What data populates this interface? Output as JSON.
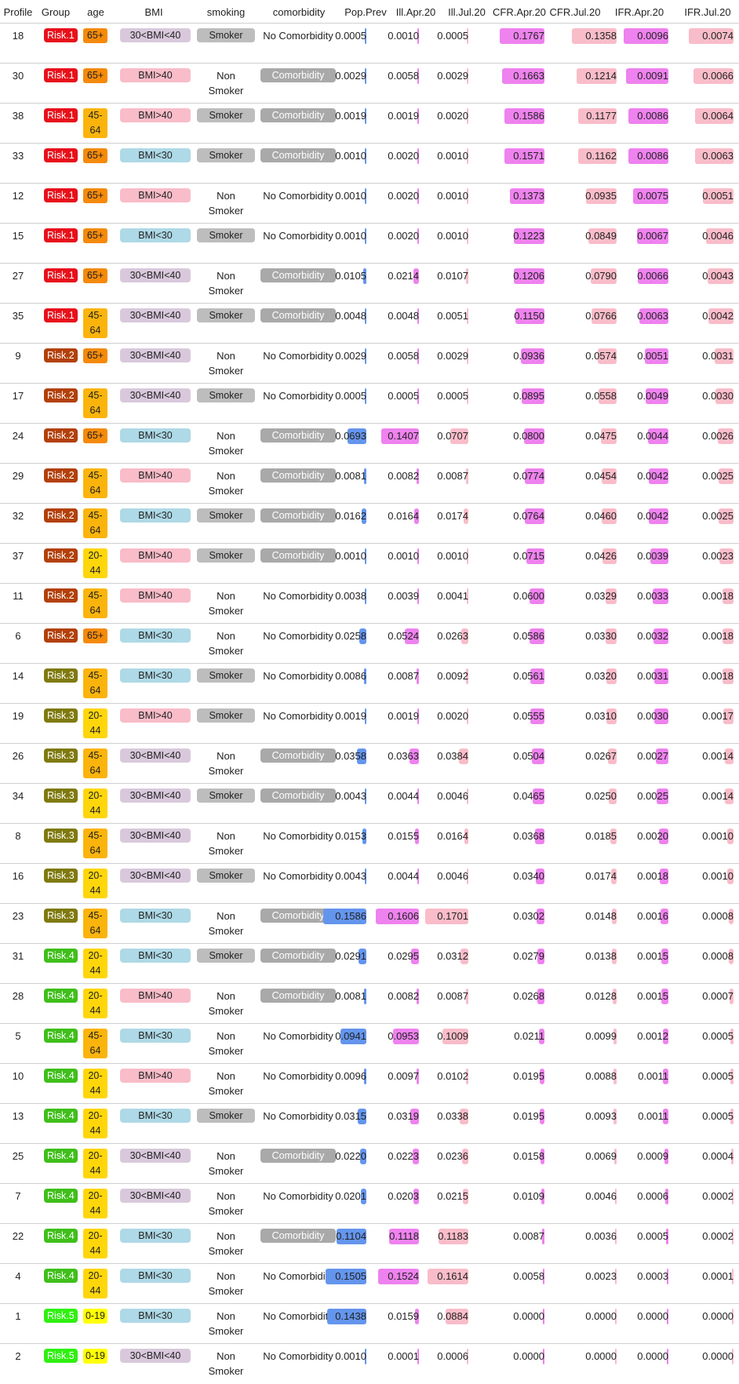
{
  "columns": [
    "Profile",
    "Group",
    "age",
    "BMI",
    "smoking",
    "comorbidity",
    "Pop.Prev",
    "Ill.Apr.20",
    "Ill.Jul.20",
    "CFR.Apr.20",
    "CFR.Jul.20",
    "IFR.Apr.20",
    "IFR.Jul.20"
  ],
  "colors": {
    "Risk.1": "#e8101b",
    "Risk.2": "#b3400a",
    "Risk.3": "#7f7a0e",
    "Risk.4": "#3fbf1a",
    "Risk.5": "#2ff00f",
    "age_65+": "#f58a0a",
    "age_45-64": "#fbb40c",
    "age_20-44": "#ffd60a",
    "age_0-19": "#ffff00",
    "BMI>40": "#f9bcc9",
    "BMI<30": "#aed9e6",
    "30<BMI<40": "#d9c8dc",
    "Smoker": "#bdbdbd",
    "Comorbidity": "#a9a9a9",
    "pop_bar": "#6495ed",
    "ill_apr_bar": "#ee82ee",
    "ill_jul_bar": "#f9bcc9",
    "cfr_apr_bar": "#ee82ee",
    "cfr_jul_bar": "#f9bcc9",
    "ifr_apr_bar": "#ee82ee",
    "ifr_jul_bar": "#f9bcc9"
  },
  "rows": [
    {
      "profile": "18",
      "group": "Risk.1",
      "age": "65+",
      "bmi": "30<BMI<40",
      "smoking": "Smoker",
      "comorbidity": "No Comorbidity",
      "pop": "0.0005",
      "ill_apr": "0.0010",
      "ill_jul": "0.0005",
      "cfr_apr": "0.1767",
      "cfr_jul": "0.1358",
      "ifr_apr": "0.0096",
      "ifr_jul": "0.0074"
    },
    {
      "profile": "30",
      "group": "Risk.1",
      "age": "65+",
      "bmi": "BMI>40",
      "smoking": "Non Smoker",
      "comorbidity": "Comorbidity",
      "pop": "0.0029",
      "ill_apr": "0.0058",
      "ill_jul": "0.0029",
      "cfr_apr": "0.1663",
      "cfr_jul": "0.1214",
      "ifr_apr": "0.0091",
      "ifr_jul": "0.0066"
    },
    {
      "profile": "38",
      "group": "Risk.1",
      "age": "45-64",
      "bmi": "BMI>40",
      "smoking": "Smoker",
      "comorbidity": "Comorbidity",
      "pop": "0.0019",
      "ill_apr": "0.0019",
      "ill_jul": "0.0020",
      "cfr_apr": "0.1586",
      "cfr_jul": "0.1177",
      "ifr_apr": "0.0086",
      "ifr_jul": "0.0064"
    },
    {
      "profile": "33",
      "group": "Risk.1",
      "age": "65+",
      "bmi": "BMI<30",
      "smoking": "Smoker",
      "comorbidity": "Comorbidity",
      "pop": "0.0010",
      "ill_apr": "0.0020",
      "ill_jul": "0.0010",
      "cfr_apr": "0.1571",
      "cfr_jul": "0.1162",
      "ifr_apr": "0.0086",
      "ifr_jul": "0.0063"
    },
    {
      "profile": "12",
      "group": "Risk.1",
      "age": "65+",
      "bmi": "BMI>40",
      "smoking": "Non Smoker",
      "comorbidity": "No Comorbidity",
      "pop": "0.0010",
      "ill_apr": "0.0020",
      "ill_jul": "0.0010",
      "cfr_apr": "0.1373",
      "cfr_jul": "0.0935",
      "ifr_apr": "0.0075",
      "ifr_jul": "0.0051"
    },
    {
      "profile": "15",
      "group": "Risk.1",
      "age": "65+",
      "bmi": "BMI<30",
      "smoking": "Smoker",
      "comorbidity": "No Comorbidity",
      "pop": "0.0010",
      "ill_apr": "0.0020",
      "ill_jul": "0.0010",
      "cfr_apr": "0.1223",
      "cfr_jul": "0.0849",
      "ifr_apr": "0.0067",
      "ifr_jul": "0.0046"
    },
    {
      "profile": "27",
      "group": "Risk.1",
      "age": "65+",
      "bmi": "30<BMI<40",
      "smoking": "Non Smoker",
      "comorbidity": "Comorbidity",
      "pop": "0.0105",
      "ill_apr": "0.0214",
      "ill_jul": "0.0107",
      "cfr_apr": "0.1206",
      "cfr_jul": "0.0790",
      "ifr_apr": "0.0066",
      "ifr_jul": "0.0043"
    },
    {
      "profile": "35",
      "group": "Risk.1",
      "age": "45-64",
      "bmi": "30<BMI<40",
      "smoking": "Smoker",
      "comorbidity": "Comorbidity",
      "pop": "0.0048",
      "ill_apr": "0.0048",
      "ill_jul": "0.0051",
      "cfr_apr": "0.1150",
      "cfr_jul": "0.0766",
      "ifr_apr": "0.0063",
      "ifr_jul": "0.0042"
    },
    {
      "profile": "9",
      "group": "Risk.2",
      "age": "65+",
      "bmi": "30<BMI<40",
      "smoking": "Non Smoker",
      "comorbidity": "No Comorbidity",
      "pop": "0.0029",
      "ill_apr": "0.0058",
      "ill_jul": "0.0029",
      "cfr_apr": "0.0936",
      "cfr_jul": "0.0574",
      "ifr_apr": "0.0051",
      "ifr_jul": "0.0031"
    },
    {
      "profile": "17",
      "group": "Risk.2",
      "age": "45-64",
      "bmi": "30<BMI<40",
      "smoking": "Smoker",
      "comorbidity": "No Comorbidity",
      "pop": "0.0005",
      "ill_apr": "0.0005",
      "ill_jul": "0.0005",
      "cfr_apr": "0.0895",
      "cfr_jul": "0.0558",
      "ifr_apr": "0.0049",
      "ifr_jul": "0.0030"
    },
    {
      "profile": "24",
      "group": "Risk.2",
      "age": "65+",
      "bmi": "BMI<30",
      "smoking": "Non Smoker",
      "comorbidity": "Comorbidity",
      "pop": "0.0693",
      "ill_apr": "0.1407",
      "ill_jul": "0.0707",
      "cfr_apr": "0.0800",
      "cfr_jul": "0.0475",
      "ifr_apr": "0.0044",
      "ifr_jul": "0.0026"
    },
    {
      "profile": "29",
      "group": "Risk.2",
      "age": "45-64",
      "bmi": "BMI>40",
      "smoking": "Non Smoker",
      "comorbidity": "Comorbidity",
      "pop": "0.0081",
      "ill_apr": "0.0082",
      "ill_jul": "0.0087",
      "cfr_apr": "0.0774",
      "cfr_jul": "0.0454",
      "ifr_apr": "0.0042",
      "ifr_jul": "0.0025"
    },
    {
      "profile": "32",
      "group": "Risk.2",
      "age": "45-64",
      "bmi": "BMI<30",
      "smoking": "Smoker",
      "comorbidity": "Comorbidity",
      "pop": "0.0162",
      "ill_apr": "0.0164",
      "ill_jul": "0.0174",
      "cfr_apr": "0.0764",
      "cfr_jul": "0.0460",
      "ifr_apr": "0.0042",
      "ifr_jul": "0.0025"
    },
    {
      "profile": "37",
      "group": "Risk.2",
      "age": "20-44",
      "bmi": "BMI>40",
      "smoking": "Smoker",
      "comorbidity": "Comorbidity",
      "pop": "0.0010",
      "ill_apr": "0.0010",
      "ill_jul": "0.0010",
      "cfr_apr": "0.0715",
      "cfr_jul": "0.0426",
      "ifr_apr": "0.0039",
      "ifr_jul": "0.0023"
    },
    {
      "profile": "11",
      "group": "Risk.2",
      "age": "45-64",
      "bmi": "BMI>40",
      "smoking": "Non Smoker",
      "comorbidity": "No Comorbidity",
      "pop": "0.0038",
      "ill_apr": "0.0039",
      "ill_jul": "0.0041",
      "cfr_apr": "0.0600",
      "cfr_jul": "0.0329",
      "ifr_apr": "0.0033",
      "ifr_jul": "0.0018"
    },
    {
      "profile": "6",
      "group": "Risk.2",
      "age": "65+",
      "bmi": "BMI<30",
      "smoking": "Non Smoker",
      "comorbidity": "No Comorbidity",
      "pop": "0.0258",
      "ill_apr": "0.0524",
      "ill_jul": "0.0263",
      "cfr_apr": "0.0586",
      "cfr_jul": "0.0330",
      "ifr_apr": "0.0032",
      "ifr_jul": "0.0018"
    },
    {
      "profile": "14",
      "group": "Risk.3",
      "age": "45-64",
      "bmi": "BMI<30",
      "smoking": "Smoker",
      "comorbidity": "No Comorbidity",
      "pop": "0.0086",
      "ill_apr": "0.0087",
      "ill_jul": "0.0092",
      "cfr_apr": "0.0561",
      "cfr_jul": "0.0320",
      "ifr_apr": "0.0031",
      "ifr_jul": "0.0018"
    },
    {
      "profile": "19",
      "group": "Risk.3",
      "age": "20-44",
      "bmi": "BMI>40",
      "smoking": "Smoker",
      "comorbidity": "No Comorbidity",
      "pop": "0.0019",
      "ill_apr": "0.0019",
      "ill_jul": "0.0020",
      "cfr_apr": "0.0555",
      "cfr_jul": "0.0310",
      "ifr_apr": "0.0030",
      "ifr_jul": "0.0017"
    },
    {
      "profile": "26",
      "group": "Risk.3",
      "age": "45-64",
      "bmi": "30<BMI<40",
      "smoking": "Non Smoker",
      "comorbidity": "Comorbidity",
      "pop": "0.0358",
      "ill_apr": "0.0363",
      "ill_jul": "0.0384",
      "cfr_apr": "0.0504",
      "cfr_jul": "0.0267",
      "ifr_apr": "0.0027",
      "ifr_jul": "0.0014"
    },
    {
      "profile": "34",
      "group": "Risk.3",
      "age": "20-44",
      "bmi": "30<BMI<40",
      "smoking": "Smoker",
      "comorbidity": "Comorbidity",
      "pop": "0.0043",
      "ill_apr": "0.0044",
      "ill_jul": "0.0046",
      "cfr_apr": "0.0465",
      "cfr_jul": "0.0250",
      "ifr_apr": "0.0025",
      "ifr_jul": "0.0014"
    },
    {
      "profile": "8",
      "group": "Risk.3",
      "age": "45-64",
      "bmi": "30<BMI<40",
      "smoking": "Non Smoker",
      "comorbidity": "No Comorbidity",
      "pop": "0.0153",
      "ill_apr": "0.0155",
      "ill_jul": "0.0164",
      "cfr_apr": "0.0368",
      "cfr_jul": "0.0185",
      "ifr_apr": "0.0020",
      "ifr_jul": "0.0010"
    },
    {
      "profile": "16",
      "group": "Risk.3",
      "age": "20-44",
      "bmi": "30<BMI<40",
      "smoking": "Smoker",
      "comorbidity": "No Comorbidity",
      "pop": "0.0043",
      "ill_apr": "0.0044",
      "ill_jul": "0.0046",
      "cfr_apr": "0.0340",
      "cfr_jul": "0.0174",
      "ifr_apr": "0.0018",
      "ifr_jul": "0.0010"
    },
    {
      "profile": "23",
      "group": "Risk.3",
      "age": "45-64",
      "bmi": "BMI<30",
      "smoking": "Non Smoker",
      "comorbidity": "Comorbidity",
      "pop": "0.1586",
      "ill_apr": "0.1606",
      "ill_jul": "0.1701",
      "cfr_apr": "0.0302",
      "cfr_jul": "0.0148",
      "ifr_apr": "0.0016",
      "ifr_jul": "0.0008"
    },
    {
      "profile": "31",
      "group": "Risk.4",
      "age": "20-44",
      "bmi": "BMI<30",
      "smoking": "Smoker",
      "comorbidity": "Comorbidity",
      "pop": "0.0291",
      "ill_apr": "0.0295",
      "ill_jul": "0.0312",
      "cfr_apr": "0.0279",
      "cfr_jul": "0.0138",
      "ifr_apr": "0.0015",
      "ifr_jul": "0.0008"
    },
    {
      "profile": "28",
      "group": "Risk.4",
      "age": "20-44",
      "bmi": "BMI>40",
      "smoking": "Non Smoker",
      "comorbidity": "Comorbidity",
      "pop": "0.0081",
      "ill_apr": "0.0082",
      "ill_jul": "0.0087",
      "cfr_apr": "0.0268",
      "cfr_jul": "0.0128",
      "ifr_apr": "0.0015",
      "ifr_jul": "0.0007"
    },
    {
      "profile": "5",
      "group": "Risk.4",
      "age": "45-64",
      "bmi": "BMI<30",
      "smoking": "Non Smoker",
      "comorbidity": "No Comorbidity",
      "pop": "0.0941",
      "ill_apr": "0.0953",
      "ill_jul": "0.1009",
      "cfr_apr": "0.0211",
      "cfr_jul": "0.0099",
      "ifr_apr": "0.0012",
      "ifr_jul": "0.0005"
    },
    {
      "profile": "10",
      "group": "Risk.4",
      "age": "20-44",
      "bmi": "BMI>40",
      "smoking": "Non Smoker",
      "comorbidity": "No Comorbidity",
      "pop": "0.0096",
      "ill_apr": "0.0097",
      "ill_jul": "0.0102",
      "cfr_apr": "0.0195",
      "cfr_jul": "0.0088",
      "ifr_apr": "0.0011",
      "ifr_jul": "0.0005"
    },
    {
      "profile": "13",
      "group": "Risk.4",
      "age": "20-44",
      "bmi": "BMI<30",
      "smoking": "Smoker",
      "comorbidity": "No Comorbidity",
      "pop": "0.0315",
      "ill_apr": "0.0319",
      "ill_jul": "0.0338",
      "cfr_apr": "0.0195",
      "cfr_jul": "0.0093",
      "ifr_apr": "0.0011",
      "ifr_jul": "0.0005"
    },
    {
      "profile": "25",
      "group": "Risk.4",
      "age": "20-44",
      "bmi": "30<BMI<40",
      "smoking": "Non Smoker",
      "comorbidity": "Comorbidity",
      "pop": "0.0220",
      "ill_apr": "0.0223",
      "ill_jul": "0.0236",
      "cfr_apr": "0.0158",
      "cfr_jul": "0.0069",
      "ifr_apr": "0.0009",
      "ifr_jul": "0.0004"
    },
    {
      "profile": "7",
      "group": "Risk.4",
      "age": "20-44",
      "bmi": "30<BMI<40",
      "smoking": "Non Smoker",
      "comorbidity": "No Comorbidity",
      "pop": "0.0201",
      "ill_apr": "0.0203",
      "ill_jul": "0.0215",
      "cfr_apr": "0.0109",
      "cfr_jul": "0.0046",
      "ifr_apr": "0.0006",
      "ifr_jul": "0.0002"
    },
    {
      "profile": "22",
      "group": "Risk.4",
      "age": "20-44",
      "bmi": "BMI<30",
      "smoking": "Non Smoker",
      "comorbidity": "Comorbidity",
      "pop": "0.1104",
      "ill_apr": "0.1118",
      "ill_jul": "0.1183",
      "cfr_apr": "0.0087",
      "cfr_jul": "0.0036",
      "ifr_apr": "0.0005",
      "ifr_jul": "0.0002"
    },
    {
      "profile": "4",
      "group": "Risk.4",
      "age": "20-44",
      "bmi": "BMI<30",
      "smoking": "Non Smoker",
      "comorbidity": "No Comorbidity",
      "pop": "0.1505",
      "ill_apr": "0.1524",
      "ill_jul": "0.1614",
      "cfr_apr": "0.0058",
      "cfr_jul": "0.0023",
      "ifr_apr": "0.0003",
      "ifr_jul": "0.0001"
    },
    {
      "profile": "1",
      "group": "Risk.5",
      "age": "0-19",
      "bmi": "BMI<30",
      "smoking": "Non Smoker",
      "comorbidity": "No Comorbidity",
      "pop": "0.1438",
      "ill_apr": "0.0159",
      "ill_jul": "0.0884",
      "cfr_apr": "0.0000",
      "cfr_jul": "0.0000",
      "ifr_apr": "0.0000",
      "ifr_jul": "0.0000"
    },
    {
      "profile": "2",
      "group": "Risk.5",
      "age": "0-19",
      "bmi": "30<BMI<40",
      "smoking": "Non Smoker",
      "comorbidity": "No Comorbidity",
      "pop": "0.0010",
      "ill_apr": "0.0001",
      "ill_jul": "0.0006",
      "cfr_apr": "0.0000",
      "cfr_jul": "0.0000",
      "ifr_apr": "0.0000",
      "ifr_jul": "0.0000"
    }
  ]
}
